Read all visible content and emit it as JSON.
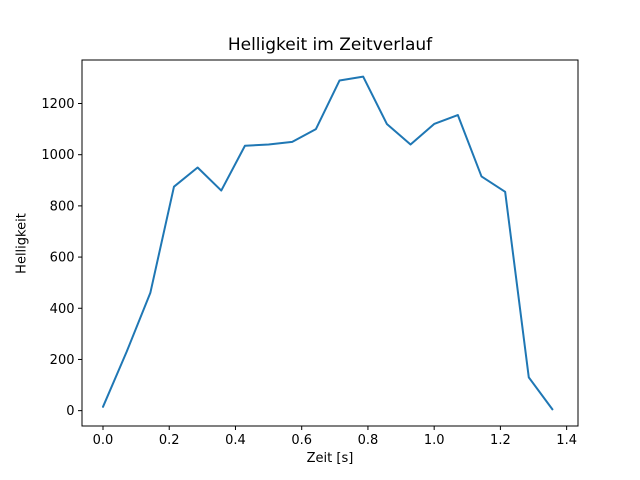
{
  "figure": {
    "background_color": "#ffffff"
  },
  "chart_data": {
    "type": "line",
    "title": "Helligkeit im Zeitverlauf",
    "xlabel": "Zeit [s]",
    "ylabel": "Helligkeit",
    "x": [
      0.0,
      0.0714,
      0.1429,
      0.2143,
      0.2857,
      0.3571,
      0.4286,
      0.5,
      0.5714,
      0.6429,
      0.7143,
      0.7857,
      0.8571,
      0.9286,
      1.0,
      1.0714,
      1.1429,
      1.2143,
      1.2857,
      1.3571
    ],
    "y": [
      15,
      230,
      460,
      875,
      950,
      860,
      1035,
      1040,
      1050,
      1100,
      1290,
      1305,
      1120,
      1040,
      1120,
      1155,
      915,
      855,
      130,
      5
    ],
    "x_ticks": {
      "values": [
        0.0,
        0.2,
        0.4,
        0.6,
        0.8,
        1.0,
        1.2,
        1.4
      ],
      "labels": [
        "0.0",
        "0.2",
        "0.4",
        "0.6",
        "0.8",
        "1.0",
        "1.2",
        "1.4"
      ]
    },
    "y_ticks": {
      "values": [
        0,
        200,
        400,
        600,
        800,
        1000,
        1200
      ],
      "labels": [
        "0",
        "200",
        "400",
        "600",
        "800",
        "1000",
        "1200"
      ]
    },
    "xlim": [
      -0.0634,
      1.4343
    ],
    "ylim": [
      -60,
      1370
    ],
    "grid": false,
    "line_color": "#1f77b4",
    "axis_color": "#000000",
    "text_color": "#000000"
  }
}
